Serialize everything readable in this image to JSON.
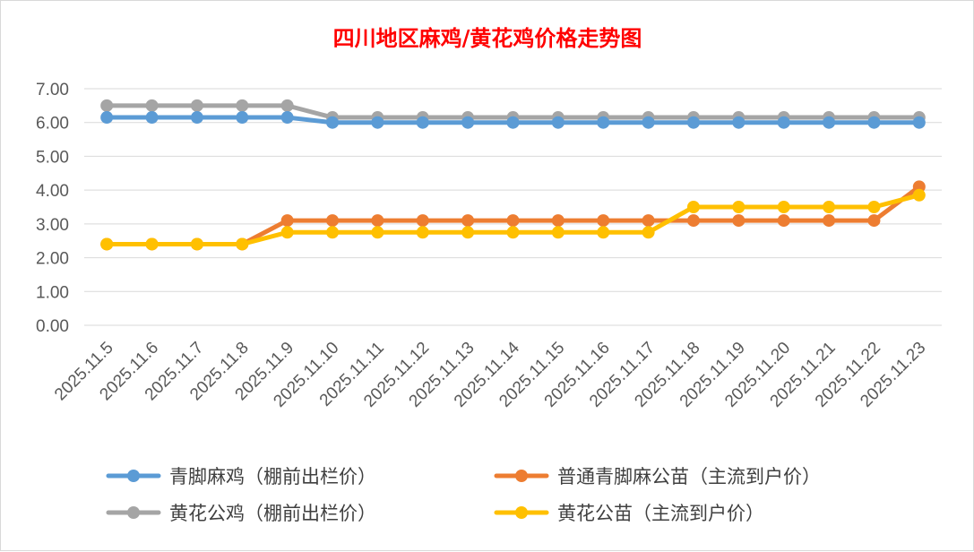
{
  "chart_data": {
    "type": "line",
    "title": "四川地区麻鸡/黄花鸡价格走势图",
    "title_color": "#ff0000",
    "xlabel": "",
    "ylabel": "",
    "ylim": [
      0,
      7
    ],
    "y_ticks": [
      "0.00",
      "1.00",
      "2.00",
      "3.00",
      "4.00",
      "5.00",
      "6.00",
      "7.00"
    ],
    "categories": [
      "2025.11.5",
      "2025.11.6",
      "2025.11.7",
      "2025.11.8",
      "2025.11.9",
      "2025.11.10",
      "2025.11.11",
      "2025.11.12",
      "2025.11.13",
      "2025.11.14",
      "2025.11.15",
      "2025.11.16",
      "2025.11.17",
      "2025.11.18",
      "2025.11.19",
      "2025.11.20",
      "2025.11.21",
      "2025.11.22",
      "2025.11.23"
    ],
    "grid": true,
    "legend_position": "bottom",
    "series": [
      {
        "name": "青脚麻鸡（棚前出栏价）",
        "color": "#5b9bd5",
        "values": [
          6.15,
          6.15,
          6.15,
          6.15,
          6.15,
          6.0,
          6.0,
          6.0,
          6.0,
          6.0,
          6.0,
          6.0,
          6.0,
          6.0,
          6.0,
          6.0,
          6.0,
          6.0,
          6.0
        ]
      },
      {
        "name": "普通青脚麻公苗（主流到户价）",
        "color": "#ed7d31",
        "values": [
          2.4,
          2.4,
          2.4,
          2.4,
          3.1,
          3.1,
          3.1,
          3.1,
          3.1,
          3.1,
          3.1,
          3.1,
          3.1,
          3.1,
          3.1,
          3.1,
          3.1,
          3.1,
          4.1
        ]
      },
      {
        "name": "黄花公鸡（棚前出栏价）",
        "color": "#a5a5a5",
        "values": [
          6.5,
          6.5,
          6.5,
          6.5,
          6.5,
          6.15,
          6.15,
          6.15,
          6.15,
          6.15,
          6.15,
          6.15,
          6.15,
          6.15,
          6.15,
          6.15,
          6.15,
          6.15,
          6.15
        ]
      },
      {
        "name": "黄花公苗（主流到户价）",
        "color": "#ffc000",
        "values": [
          2.4,
          2.4,
          2.4,
          2.4,
          2.75,
          2.75,
          2.75,
          2.75,
          2.75,
          2.75,
          2.75,
          2.75,
          2.75,
          3.5,
          3.5,
          3.5,
          3.5,
          3.5,
          3.85
        ]
      }
    ],
    "legend_order": [
      0,
      1,
      2,
      3
    ]
  }
}
